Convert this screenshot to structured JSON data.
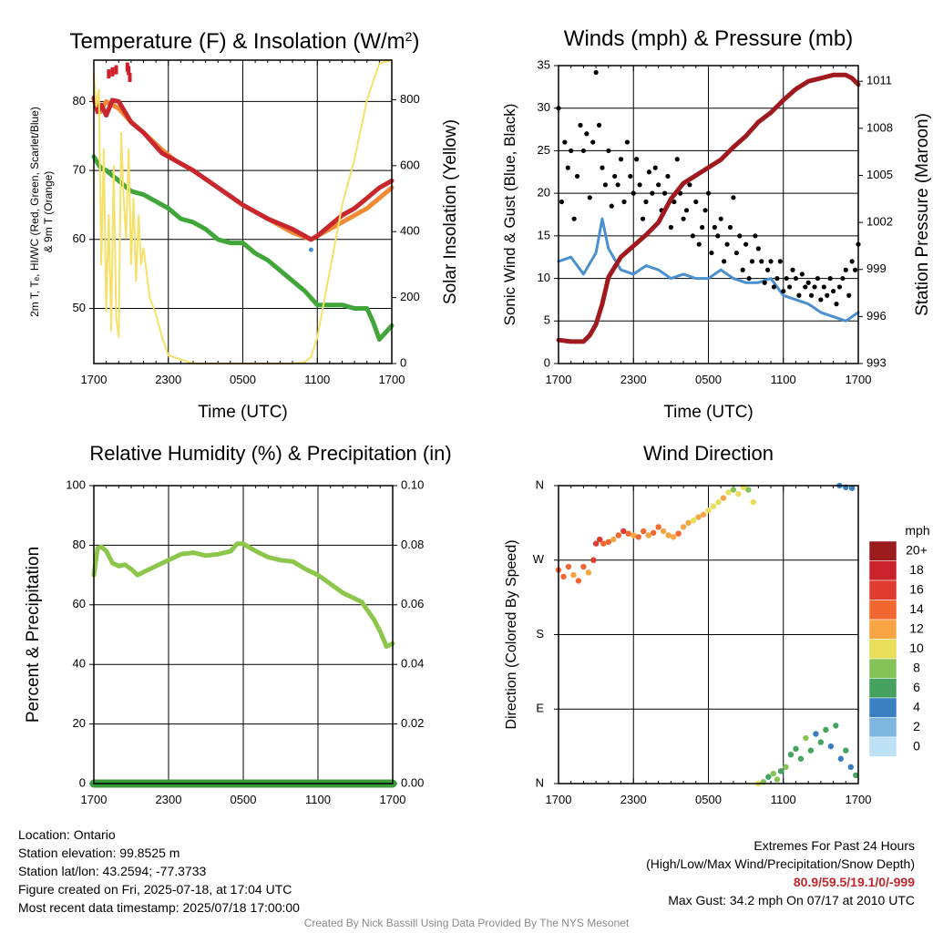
{
  "colors": {
    "temp_2m": "#c8272d",
    "dewpoint": "#40a63a",
    "heat_index": "#d01f2a",
    "temp_9m": "#f08a34",
    "insolation": "#f5e16a",
    "wind_speed": "#4a8fcf",
    "gust": "#000000",
    "pressure": "#a0191f",
    "humidity": "#8cc64a",
    "precipitation": "#3a9b3a"
  },
  "chart_data": [
    {
      "id": "temperature",
      "type": "line",
      "title": "Temperature (F) & Insolation (W/m²)",
      "xlabel": "Time (UTC)",
      "ylabel_line1": "2m T, Tₑ, HI/WC (Red, Green, Scarlet/Blue)",
      "ylabel_line2": "& 9m T (Orange)",
      "ylabel_right": "Solar Insolation (Yellow)",
      "x_ticks": [
        "1700",
        "2300",
        "0500",
        "1100",
        "1700"
      ],
      "x_range_hours": [
        0,
        24
      ],
      "ylim": [
        42,
        86
      ],
      "y_ticks": [
        50,
        60,
        70,
        80
      ],
      "y_right_lim": [
        0,
        920
      ],
      "y_right_ticks": [
        0,
        200,
        400,
        600,
        800
      ],
      "grid": true,
      "series": [
        {
          "key": "temp_9m",
          "x": [
            0,
            0.5,
            1,
            2,
            3,
            4,
            5.5,
            6.5,
            8,
            10,
            12,
            14,
            16,
            17.5,
            18,
            19,
            20,
            21,
            22,
            23,
            24
          ],
          "y": [
            80.5,
            78.5,
            80,
            79,
            77,
            75.5,
            73,
            71.5,
            70,
            67.5,
            65,
            63,
            61,
            60,
            60.5,
            61.5,
            62.5,
            63.5,
            64.5,
            66,
            67.5
          ]
        },
        {
          "key": "temp_2m",
          "x": [
            0,
            0.3,
            0.6,
            1,
            1.5,
            2,
            2.5,
            3,
            4,
            5.5,
            6.5,
            8,
            10,
            12,
            14,
            16,
            17.5,
            18,
            19,
            20,
            21,
            22,
            23,
            24
          ],
          "y": [
            80.5,
            78.5,
            79.5,
            78,
            80.2,
            80,
            78.5,
            77,
            75.5,
            72.5,
            71.5,
            70,
            67.5,
            65,
            63,
            61.5,
            60,
            60.5,
            62,
            63.5,
            64.5,
            66,
            67.5,
            68.5
          ]
        },
        {
          "key": "dewpoint",
          "x": [
            0,
            0.5,
            1,
            2,
            3,
            4,
            5,
            6,
            7,
            8,
            9,
            10,
            11,
            12,
            13,
            14,
            15,
            16,
            17,
            18,
            19,
            20,
            21,
            22,
            22.5,
            23,
            23.5,
            24
          ],
          "y": [
            72,
            70.5,
            70,
            68.5,
            67,
            66.5,
            65.5,
            64.5,
            63,
            62.5,
            61.5,
            60,
            59.5,
            59.5,
            58,
            57,
            55.5,
            54,
            52.5,
            50.5,
            50.5,
            50.5,
            50,
            50,
            48,
            45.5,
            46.5,
            47.5
          ]
        },
        {
          "key": "insolation",
          "axis": "right",
          "x": [
            0,
            0.2,
            0.4,
            0.6,
            0.8,
            1.0,
            1.2,
            1.4,
            1.6,
            1.8,
            2.0,
            2.2,
            2.4,
            2.6,
            2.8,
            3.0,
            3.2,
            3.4,
            3.6,
            3.8,
            4.0,
            4.5,
            5.0,
            5.5,
            6,
            8,
            10,
            12,
            14,
            16,
            17,
            17.5,
            18,
            19,
            20,
            21,
            22,
            23,
            24
          ],
          "y": [
            880,
            780,
            830,
            300,
            650,
            160,
            450,
            100,
            600,
            140,
            80,
            700,
            500,
            380,
            650,
            300,
            500,
            250,
            450,
            300,
            350,
            200,
            150,
            80,
            25,
            0,
            0,
            0,
            0,
            0,
            5,
            20,
            80,
            280,
            480,
            620,
            800,
            910,
            920
          ]
        }
      ],
      "heat_index_points": {
        "x": [
          1.2,
          1.5,
          1.8,
          2.7,
          2.8,
          2.9
        ],
        "y": [
          84,
          84.3,
          84.6,
          85,
          84.5,
          83.5
        ]
      },
      "wind_chill_points": {
        "x": [
          17.5
        ],
        "y": [
          58.5
        ]
      }
    },
    {
      "id": "winds",
      "type": "line",
      "title": "Winds (mph) & Pressure (mb)",
      "xlabel": "Time (UTC)",
      "ylabel": "Sonic Wind & Gust (Blue, Black)",
      "ylabel_right": "Station Pressure (Maroon)",
      "x_ticks": [
        "1700",
        "2300",
        "0500",
        "1100",
        "1700"
      ],
      "x_range_hours": [
        0,
        24
      ],
      "ylim": [
        0,
        35
      ],
      "y_ticks": [
        0,
        5,
        10,
        15,
        20,
        25,
        30,
        35
      ],
      "y_right_lim": [
        993,
        1012
      ],
      "y_right_ticks": [
        993,
        996,
        999,
        1002,
        1005,
        1008,
        1011
      ],
      "grid": true,
      "series": [
        {
          "key": "wind_speed",
          "x": [
            0,
            1,
            2,
            3,
            3.5,
            4,
            5,
            6,
            7,
            8,
            9,
            10,
            11,
            12,
            13,
            14,
            15,
            16,
            17,
            18,
            19,
            20,
            21,
            22,
            23,
            24
          ],
          "y": [
            12,
            12.5,
            10.5,
            13,
            17,
            13.5,
            11,
            10.5,
            11.5,
            11,
            10,
            10.5,
            10,
            10,
            11,
            10,
            9.5,
            9.5,
            10,
            8,
            7.5,
            7,
            6,
            5.5,
            5,
            6
          ]
        },
        {
          "key": "pressure",
          "axis": "right",
          "x": [
            0,
            1,
            2,
            2.5,
            3,
            3.5,
            4,
            5,
            6,
            7,
            8,
            9,
            10,
            11,
            12,
            13,
            14,
            15,
            16,
            17,
            18,
            19,
            20,
            21,
            22,
            23,
            23.5,
            24
          ],
          "y": [
            994.5,
            994.4,
            994.4,
            994.8,
            995.5,
            996.8,
            998.5,
            999.8,
            1000.5,
            1001.2,
            1002,
            1003.5,
            1004.5,
            1005,
            1005.5,
            1006,
            1006.8,
            1007.5,
            1008.4,
            1009,
            1009.8,
            1010.5,
            1011,
            1011.2,
            1011.4,
            1011.4,
            1011.2,
            1010.8
          ]
        }
      ],
      "gust_points": {
        "x": [
          0,
          0.25,
          0.5,
          0.75,
          1,
          1.25,
          1.5,
          1.75,
          2,
          2.25,
          2.5,
          2.75,
          3,
          3.25,
          3.5,
          3.75,
          4,
          4.25,
          4.5,
          4.75,
          5,
          5.25,
          5.5,
          5.75,
          6,
          6.25,
          6.5,
          6.75,
          7,
          7.25,
          7.5,
          7.75,
          8,
          8.25,
          8.5,
          8.75,
          9,
          9.25,
          9.5,
          9.75,
          10,
          10.25,
          10.5,
          10.75,
          11,
          11.25,
          11.5,
          11.75,
          12,
          12.25,
          12.5,
          12.75,
          13,
          13.25,
          13.5,
          13.75,
          14,
          14.25,
          14.5,
          14.75,
          15,
          15.25,
          15.5,
          15.75,
          16,
          16.25,
          16.5,
          16.75,
          17,
          17.25,
          17.5,
          17.75,
          18,
          18.25,
          18.5,
          18.75,
          19,
          19.25,
          19.5,
          19.75,
          20,
          20.25,
          20.5,
          20.75,
          21,
          21.25,
          21.5,
          21.75,
          22,
          22.25,
          22.5,
          22.75,
          23,
          23.25,
          23.5,
          23.75,
          24
        ],
        "y": [
          30,
          19,
          26,
          23,
          25,
          17,
          22,
          28,
          25,
          27,
          19.5,
          26,
          34.2,
          28,
          23,
          21,
          25,
          18.5,
          22,
          21,
          24,
          19,
          26,
          22,
          20,
          24,
          21,
          17,
          19,
          22.5,
          20,
          23,
          21,
          18,
          20,
          22,
          16,
          19,
          24,
          20,
          17,
          18,
          21,
          15,
          19,
          14,
          16,
          18,
          20,
          13,
          16,
          15,
          17,
          12,
          14,
          16,
          19.5,
          13,
          15,
          11,
          14,
          10,
          12,
          15,
          13.5,
          12,
          9.5,
          11,
          12,
          9,
          10,
          12,
          8.5,
          10,
          9,
          11,
          10,
          8,
          10.5,
          9,
          9.5,
          8,
          9,
          10,
          7.5,
          9,
          8,
          10,
          8.5,
          7,
          9,
          10,
          11,
          8,
          12,
          11,
          14
        ]
      },
      "max_gust": 34.2
    },
    {
      "id": "humidity",
      "type": "line",
      "title": "Relative Humidity (%) & Precipitation (in)",
      "xlabel": "",
      "ylabel": "Percent & Precipitation",
      "x_ticks": [
        "1700",
        "2300",
        "0500",
        "1100",
        "1700"
      ],
      "x_range_hours": [
        0,
        24
      ],
      "ylim": [
        0,
        100
      ],
      "y_ticks": [
        0,
        20,
        40,
        60,
        80,
        100
      ],
      "y_right_lim": [
        0,
        0.1
      ],
      "y_right_ticks": [
        "0.00",
        "0.02",
        "0.04",
        "0.06",
        "0.08",
        "0.10"
      ],
      "grid": true,
      "series": [
        {
          "key": "humidity",
          "x": [
            0,
            0.3,
            0.6,
            1,
            1.5,
            2,
            2.5,
            3,
            3.5,
            4,
            5,
            6,
            7,
            8,
            9,
            10,
            11,
            11.5,
            12,
            13,
            14,
            15,
            16,
            17,
            18,
            19,
            20,
            20.5,
            21,
            21.5,
            22,
            22.5,
            23,
            23.5,
            24
          ],
          "y": [
            70,
            79,
            79.5,
            78,
            74,
            73,
            73.5,
            72,
            70,
            71,
            73,
            75,
            77,
            77.5,
            76.5,
            77,
            78,
            80.5,
            80.5,
            78,
            76,
            75,
            74.5,
            72,
            70,
            67,
            64,
            63,
            62,
            61,
            58,
            55,
            51,
            46,
            47
          ]
        },
        {
          "key": "precipitation",
          "axis": "right",
          "x": [
            0,
            24
          ],
          "y": [
            0,
            0
          ]
        }
      ]
    },
    {
      "id": "direction",
      "type": "scatter",
      "title": "Wind Direction",
      "xlabel": "",
      "ylabel": "Direction (Colored By Speed)",
      "x_ticks": [
        "1700",
        "2300",
        "0500",
        "1100",
        "1700"
      ],
      "x_range_hours": [
        0,
        24
      ],
      "ylim": [
        0,
        360
      ],
      "y_tick_labels": [
        "N",
        "E",
        "S",
        "W",
        "N"
      ],
      "grid": true,
      "legend": {
        "title": "mph",
        "placement": "right",
        "labels": [
          "20+",
          "18",
          "16",
          "14",
          "12",
          "10",
          "8",
          "6",
          "4",
          "2",
          "0"
        ],
        "colors": [
          "#9b1c1f",
          "#c8222a",
          "#df3b2e",
          "#f0682f",
          "#f7a444",
          "#e8de5a",
          "#86c356",
          "#45a35f",
          "#3a7fbf",
          "#7fb6e0",
          "#bfe1f5"
        ]
      },
      "points": {
        "x": [
          0,
          0.4,
          0.8,
          1.2,
          1.6,
          2.0,
          2.4,
          2.8,
          3.0,
          3.3,
          3.6,
          4.0,
          4.4,
          4.8,
          5.2,
          5.6,
          6.0,
          6.4,
          6.8,
          7.2,
          7.6,
          8.0,
          8.4,
          8.8,
          9.2,
          9.6,
          10.0,
          10.4,
          10.8,
          11.2,
          11.6,
          12.0,
          12.4,
          12.8,
          13.2,
          13.6,
          14.0,
          14.4,
          14.8,
          15.2,
          15.6,
          16.0,
          16.4,
          16.8,
          17.2,
          17.5,
          17.8,
          18.2,
          18.6,
          19.0,
          19.4,
          19.8,
          20.2,
          20.6,
          21.0,
          21.4,
          21.8,
          22.2,
          22.6,
          23.0,
          23.4,
          23.8,
          22.5,
          23.0,
          23.5
        ],
        "y": [
          258,
          250,
          262,
          252,
          245,
          262,
          255,
          270,
          290,
          295,
          290,
          292,
          295,
          300,
          305,
          302,
          300,
          298,
          305,
          300,
          303,
          310,
          305,
          300,
          298,
          302,
          310,
          315,
          318,
          322,
          325,
          330,
          335,
          340,
          345,
          352,
          355,
          350,
          358,
          355,
          340,
          0,
          2,
          8,
          12,
          5,
          15,
          20,
          35,
          42,
          30,
          55,
          40,
          60,
          50,
          65,
          45,
          70,
          30,
          40,
          20,
          10,
          360,
          358,
          357
        ],
        "speeds": [
          13,
          14,
          13,
          12,
          14,
          13,
          12,
          15,
          16,
          15,
          14,
          13,
          12,
          14,
          15,
          13,
          12,
          14,
          13,
          12,
          14,
          13,
          12,
          11,
          12,
          13,
          12,
          11,
          10,
          11,
          12,
          10,
          9,
          10,
          11,
          9,
          8,
          10,
          9,
          8,
          9,
          10,
          7,
          6,
          7,
          8,
          6,
          7,
          6,
          5,
          6,
          7,
          5,
          4,
          5,
          6,
          4,
          5,
          4,
          5,
          4,
          6,
          4,
          4,
          3
        ]
      }
    }
  ],
  "footer": {
    "location": "Location: Ontario",
    "elevation": "Station elevation: 99.8525 m",
    "latlon": "Station lat/lon: 43.2594; -77.3733",
    "created": "Figure created on Fri, 2025-07-18, at 17:04 UTC",
    "recent": "Most recent data timestamp: 2025/07/18 17:00:00",
    "extremes_title": "Extremes For Past 24 Hours",
    "extremes_legend": "(High/Low/Max Wind/Precipitation/Snow Depth)",
    "extremes_values": "80.9/59.5/19.1/0/-999",
    "max_gust": "Max Gust: 34.2 mph On 07/17 at 2010 UTC",
    "credit": "Created By Nick Bassill Using Data Provided By The NYS Mesonet"
  }
}
